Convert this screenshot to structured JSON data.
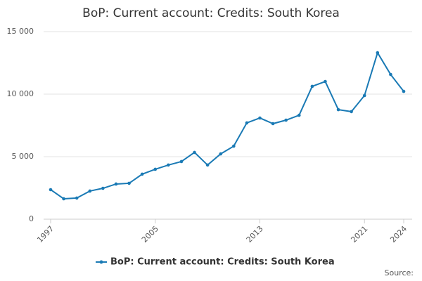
{
  "chart_data": {
    "type": "line",
    "title": "BoP: Current account: Credits: South Korea",
    "x": [
      1997,
      1998,
      1999,
      2000,
      2001,
      2002,
      2003,
      2004,
      2005,
      2006,
      2007,
      2008,
      2009,
      2010,
      2011,
      2012,
      2013,
      2014,
      2015,
      2016,
      2017,
      2018,
      2019,
      2020,
      2021,
      2022,
      2023,
      2024
    ],
    "xlim": [
      1997,
      2024
    ],
    "xticks": [
      1997,
      2005,
      2013,
      2021,
      2024
    ],
    "series": [
      {
        "name": "BoP: Current account: Credits: South Korea",
        "color": "#1a7ab5",
        "values": [
          2360,
          1630,
          1690,
          2250,
          2470,
          2810,
          2870,
          3600,
          3990,
          4330,
          4610,
          5340,
          4330,
          5220,
          5840,
          7700,
          8090,
          7640,
          7920,
          8310,
          10620,
          11010,
          8760,
          8600,
          9890,
          13310,
          11570,
          10220
        ]
      }
    ],
    "ylim": [
      0,
      15000
    ],
    "yticks": [
      0,
      {
        "value": 5000,
        "label": "5 000"
      },
      {
        "value": 10000,
        "label": "10 000"
      },
      {
        "value": 15000,
        "label": "15 000"
      }
    ],
    "grid": true,
    "source": "Source:"
  }
}
